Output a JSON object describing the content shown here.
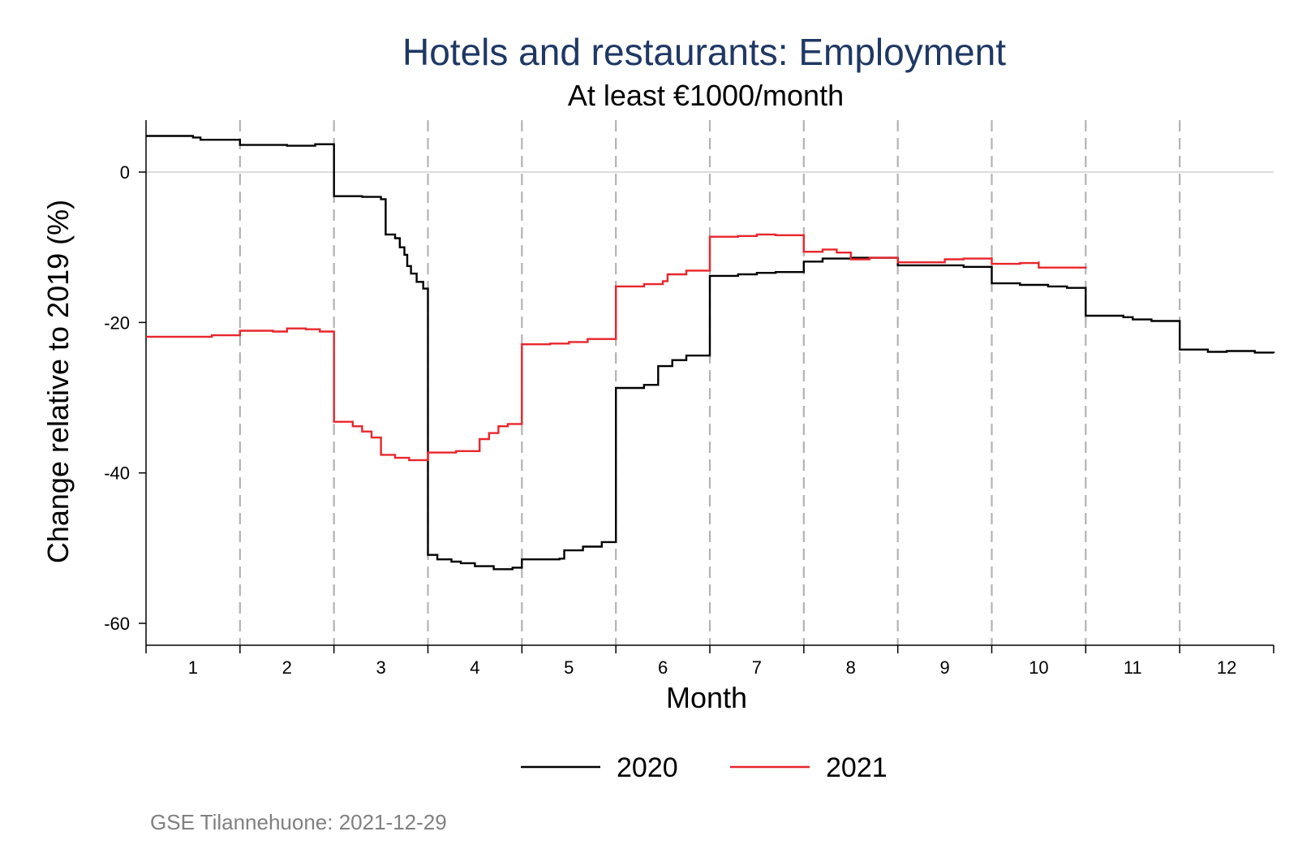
{
  "chart_data": {
    "type": "line",
    "line_shape": "step",
    "title": "Hotels and restaurants: Employment",
    "subtitle": "At least €1000/month",
    "xlabel": "Month",
    "ylabel": "Change relative to 2019 (%)",
    "categories": [
      "1",
      "2",
      "3",
      "4",
      "5",
      "6",
      "7",
      "8",
      "9",
      "10",
      "11",
      "12"
    ],
    "xlim": [
      0.5,
      12.5
    ],
    "ylim": [
      -62,
      7
    ],
    "yticks": [
      {
        "value": 0,
        "label": "0"
      },
      {
        "value": -20,
        "label": "-20"
      },
      {
        "value": -40,
        "label": "-40"
      },
      {
        "value": -60,
        "label": "-60"
      }
    ],
    "reference_line": 0,
    "month_boundaries": [
      1.5,
      2.5,
      3.5,
      4.5,
      5.5,
      6.5,
      7.5,
      8.5,
      9.5,
      10.5,
      11.5
    ],
    "legend_position": "bottom",
    "series": [
      {
        "name": "2020",
        "color": "#000000",
        "points": [
          [
            0.5,
            4.8
          ],
          [
            0.98,
            4.8
          ],
          [
            1.0,
            4.6
          ],
          [
            1.08,
            4.3
          ],
          [
            1.5,
            4.3
          ],
          [
            1.5,
            3.6
          ],
          [
            2.0,
            3.5
          ],
          [
            2.3,
            3.7
          ],
          [
            2.5,
            3.5
          ],
          [
            2.5,
            -3.2
          ],
          [
            2.8,
            -3.3
          ],
          [
            3.0,
            -3.6
          ],
          [
            3.05,
            -8.3
          ],
          [
            3.15,
            -8.8
          ],
          [
            3.2,
            -10.0
          ],
          [
            3.25,
            -11.0
          ],
          [
            3.28,
            -12.5
          ],
          [
            3.32,
            -13.5
          ],
          [
            3.38,
            -14.6
          ],
          [
            3.45,
            -15.5
          ],
          [
            3.5,
            -16.0
          ],
          [
            3.5,
            -50.9
          ],
          [
            3.6,
            -51.5
          ],
          [
            3.75,
            -51.8
          ],
          [
            3.85,
            -52.0
          ],
          [
            4.0,
            -52.4
          ],
          [
            4.2,
            -52.8
          ],
          [
            4.4,
            -52.6
          ],
          [
            4.5,
            -51.5
          ],
          [
            4.9,
            -51.4
          ],
          [
            4.95,
            -50.3
          ],
          [
            5.15,
            -49.8
          ],
          [
            5.35,
            -49.2
          ],
          [
            5.5,
            -49.0
          ],
          [
            5.5,
            -28.7
          ],
          [
            5.8,
            -28.3
          ],
          [
            5.95,
            -25.8
          ],
          [
            6.1,
            -25.0
          ],
          [
            6.25,
            -24.4
          ],
          [
            6.5,
            -24.0
          ],
          [
            6.5,
            -13.8
          ],
          [
            6.8,
            -13.6
          ],
          [
            7.0,
            -13.4
          ],
          [
            7.2,
            -13.3
          ],
          [
            7.5,
            -13.2
          ],
          [
            7.5,
            -11.9
          ],
          [
            7.7,
            -11.5
          ],
          [
            8.0,
            -11.4
          ],
          [
            8.2,
            -11.4
          ],
          [
            8.5,
            -11.5
          ],
          [
            8.5,
            -12.4
          ],
          [
            8.8,
            -12.4
          ],
          [
            9.0,
            -12.4
          ],
          [
            9.2,
            -12.6
          ],
          [
            9.5,
            -12.9
          ],
          [
            9.5,
            -14.8
          ],
          [
            9.8,
            -15.0
          ],
          [
            10.1,
            -15.2
          ],
          [
            10.3,
            -15.4
          ],
          [
            10.5,
            -15.6
          ],
          [
            10.5,
            -19.1
          ],
          [
            10.9,
            -19.3
          ],
          [
            11.0,
            -19.6
          ],
          [
            11.2,
            -19.8
          ],
          [
            11.5,
            -20.2
          ],
          [
            11.5,
            -23.6
          ],
          [
            11.8,
            -23.9
          ],
          [
            12.0,
            -23.8
          ],
          [
            12.3,
            -24.0
          ],
          [
            12.5,
            -24.1
          ]
        ]
      },
      {
        "name": "2021",
        "color": "#e8262c",
        "points": [
          [
            0.5,
            -21.9
          ],
          [
            1.0,
            -21.9
          ],
          [
            1.2,
            -21.7
          ],
          [
            1.5,
            -21.5
          ],
          [
            1.5,
            -21.1
          ],
          [
            1.85,
            -21.2
          ],
          [
            2.0,
            -20.8
          ],
          [
            2.2,
            -20.9
          ],
          [
            2.35,
            -21.2
          ],
          [
            2.5,
            -21.5
          ],
          [
            2.5,
            -33.2
          ],
          [
            2.7,
            -33.8
          ],
          [
            2.8,
            -34.5
          ],
          [
            2.9,
            -35.3
          ],
          [
            3.0,
            -35.5
          ],
          [
            3.0,
            -37.6
          ],
          [
            3.15,
            -38.0
          ],
          [
            3.3,
            -38.3
          ],
          [
            3.5,
            -38.2
          ],
          [
            3.5,
            -37.3
          ],
          [
            3.8,
            -37.1
          ],
          [
            4.05,
            -36.7
          ],
          [
            4.05,
            -35.5
          ],
          [
            4.15,
            -34.7
          ],
          [
            4.25,
            -33.8
          ],
          [
            4.35,
            -33.5
          ],
          [
            4.5,
            -33.1
          ],
          [
            4.5,
            -22.9
          ],
          [
            4.8,
            -22.8
          ],
          [
            5.0,
            -22.6
          ],
          [
            5.2,
            -22.2
          ],
          [
            5.5,
            -21.8
          ],
          [
            5.5,
            -15.2
          ],
          [
            5.8,
            -14.9
          ],
          [
            6.0,
            -14.5
          ],
          [
            6.05,
            -13.6
          ],
          [
            6.25,
            -13.1
          ],
          [
            6.5,
            -12.8
          ],
          [
            6.5,
            -8.6
          ],
          [
            6.8,
            -8.5
          ],
          [
            7.0,
            -8.3
          ],
          [
            7.2,
            -8.4
          ],
          [
            7.5,
            -8.5
          ],
          [
            7.5,
            -10.6
          ],
          [
            7.7,
            -10.3
          ],
          [
            7.85,
            -10.7
          ],
          [
            8.0,
            -11.6
          ],
          [
            8.2,
            -11.4
          ],
          [
            8.5,
            -11.5
          ],
          [
            8.5,
            -12.0
          ],
          [
            8.8,
            -12.0
          ],
          [
            9.0,
            -11.6
          ],
          [
            9.2,
            -11.5
          ],
          [
            9.5,
            -11.3
          ],
          [
            9.5,
            -12.2
          ],
          [
            9.8,
            -12.1
          ],
          [
            10.0,
            -11.9
          ],
          [
            10.0,
            -12.7
          ],
          [
            10.2,
            -12.7
          ],
          [
            10.5,
            -12.6
          ]
        ]
      }
    ],
    "source_note": "GSE Tilannehuone: 2021-12-29"
  }
}
